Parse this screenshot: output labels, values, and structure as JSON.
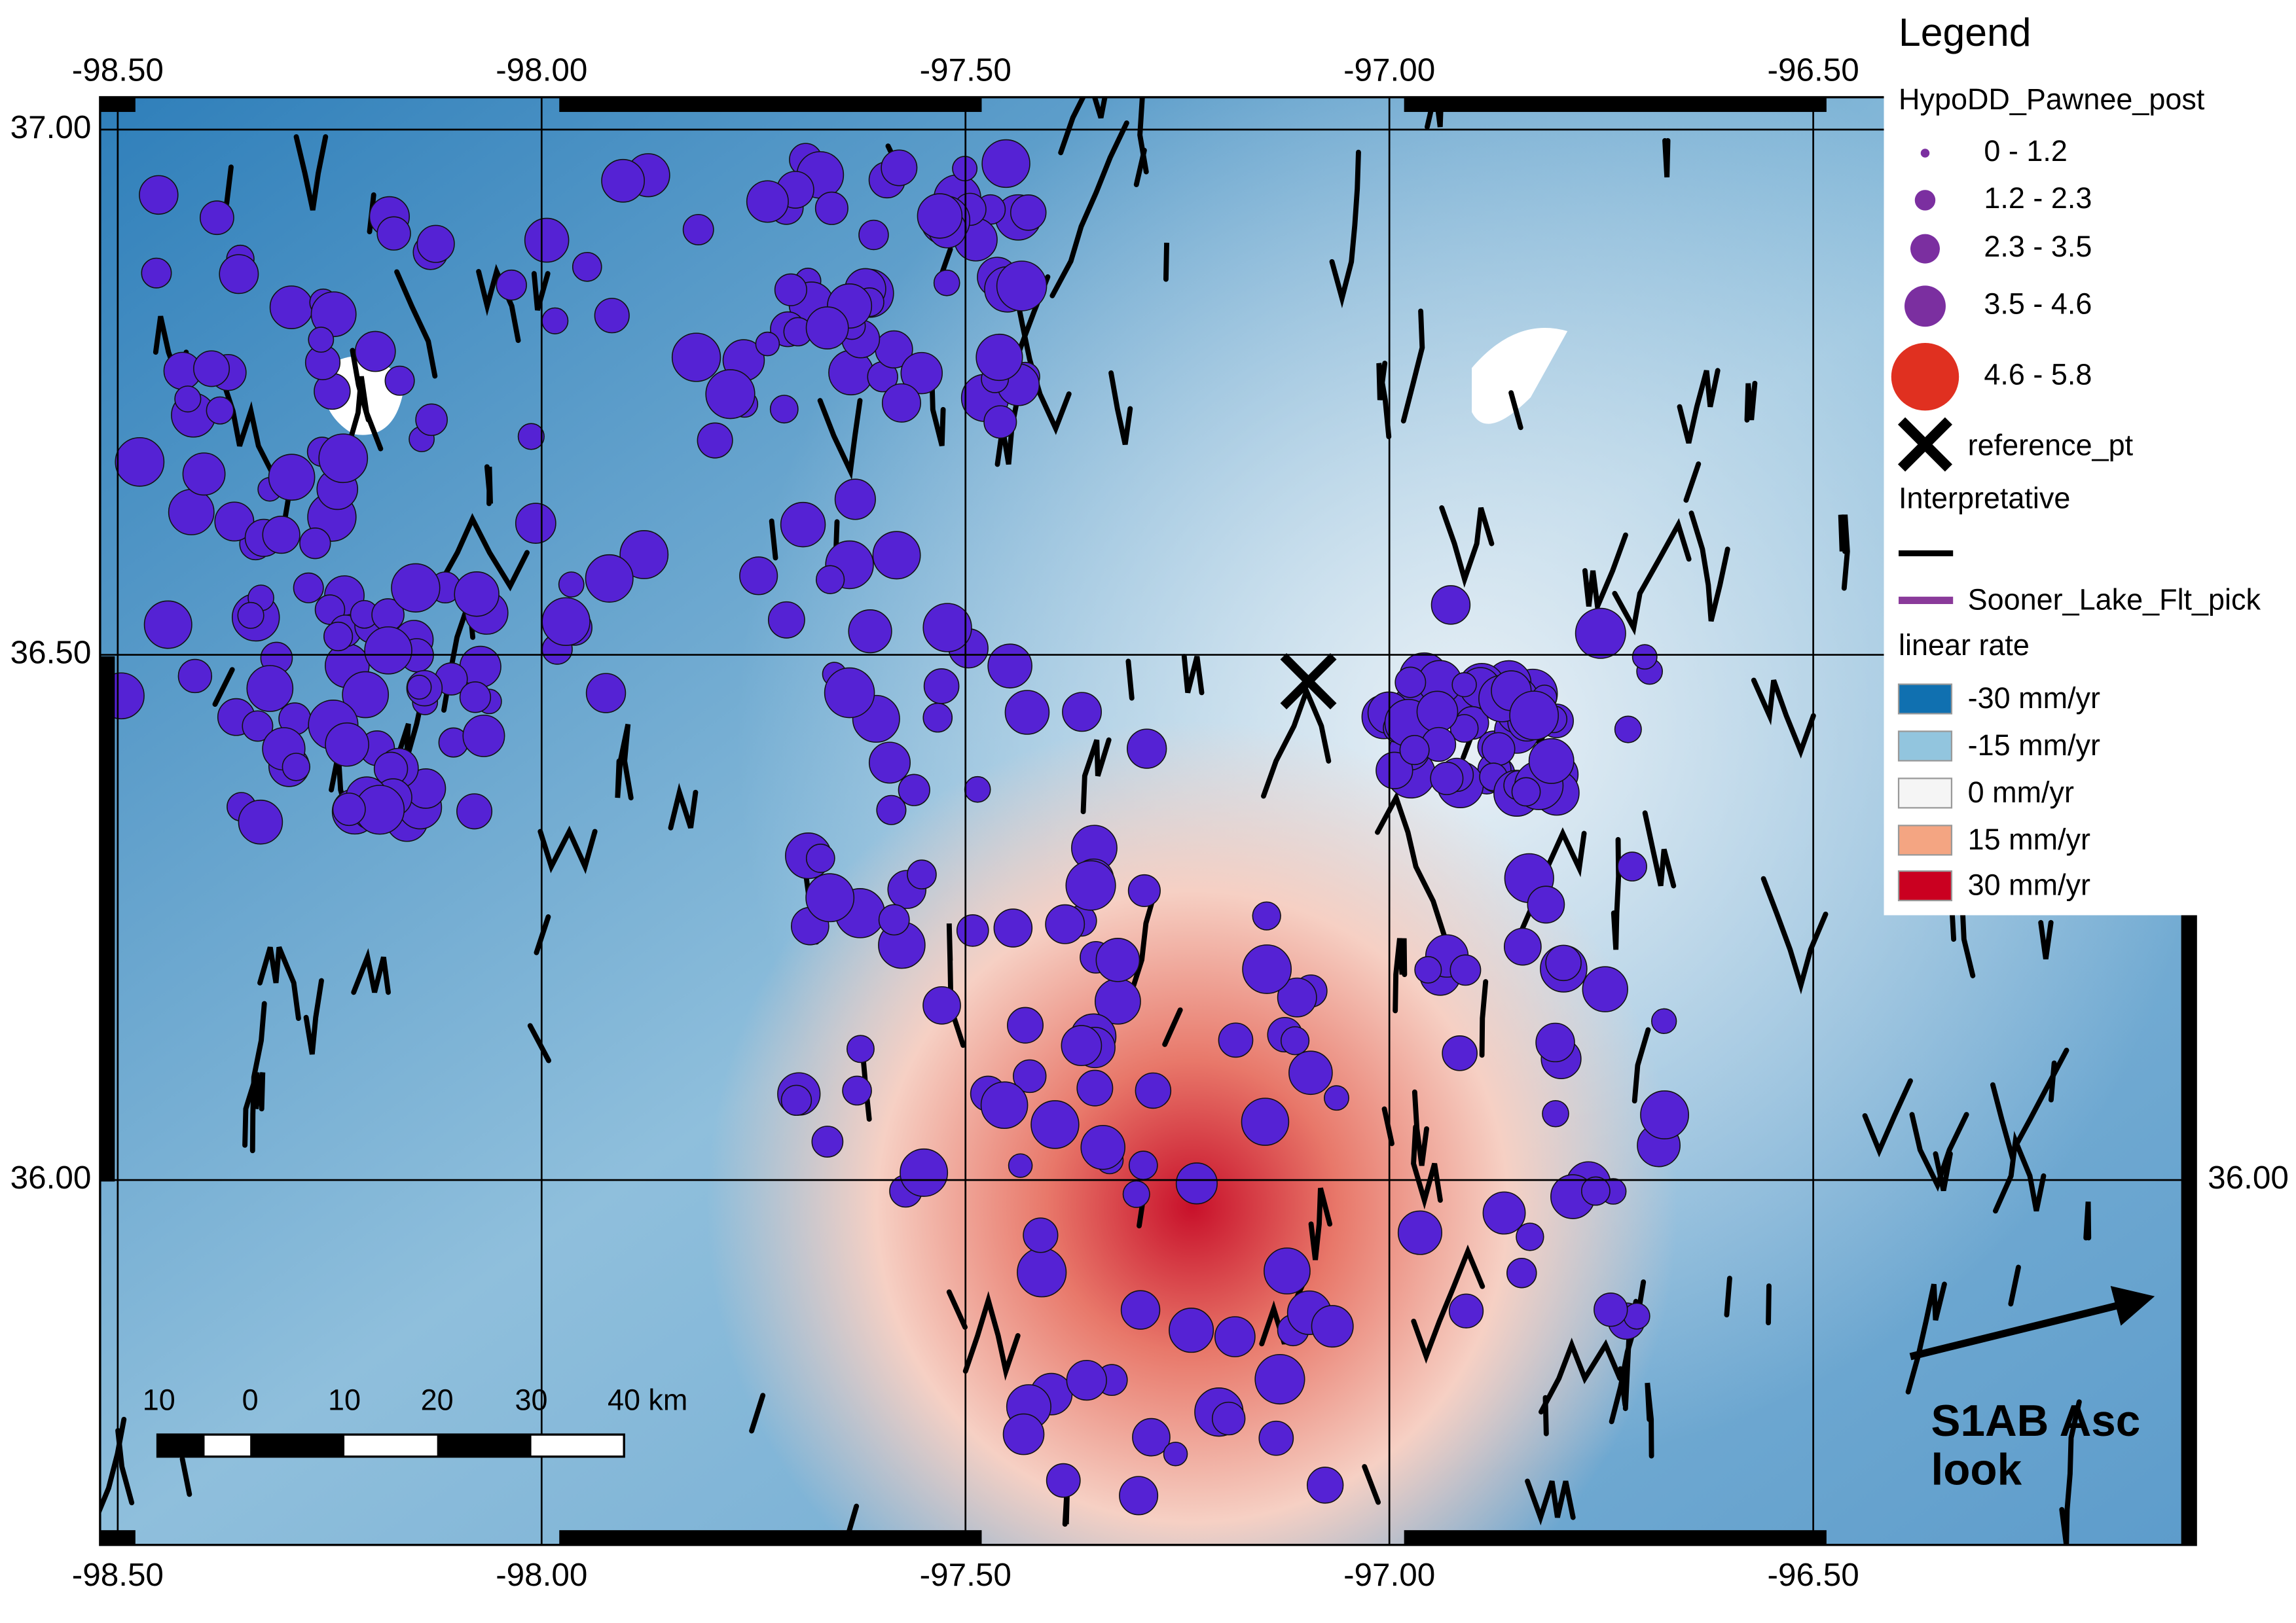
{
  "map": {
    "legend": {
      "title": "Legend",
      "layer_title": "HypoDD_Pawnee_post",
      "magnitude_classes": [
        "0 - 1.2",
        "1.2 - 2.3",
        "2.3 - 3.5",
        "3.5 - 4.6",
        "4.6 - 5.8"
      ],
      "reference": "reference_pt",
      "fault_group": "Interpretative",
      "fault_pick": "Sooner_Lake_Flt_pick",
      "raster_title": "linear rate",
      "rate_classes": [
        "-30 mm/yr",
        "-15 mm/yr",
        "0 mm/yr",
        "15 mm/yr",
        "30 mm/yr"
      ]
    },
    "lon_ticks": [
      {
        "value": -98.5,
        "label": "-98.50"
      },
      {
        "value": -98,
        "label": "-98.00"
      },
      {
        "value": -97.5,
        "label": "-97.50"
      },
      {
        "value": -97,
        "label": "-97.00"
      },
      {
        "value": -96.5,
        "label": "-96.50"
      }
    ],
    "lat_ticks": [
      {
        "value": 37,
        "label": "37.00"
      },
      {
        "value": 36.5,
        "label": "36.50"
      },
      {
        "value": 36,
        "label": "36.00"
      }
    ],
    "scale_bar": [
      "10",
      "0",
      "10",
      "20",
      "30",
      "40 km"
    ],
    "annotation": [
      "S1AB Asc",
      "look"
    ]
  }
}
